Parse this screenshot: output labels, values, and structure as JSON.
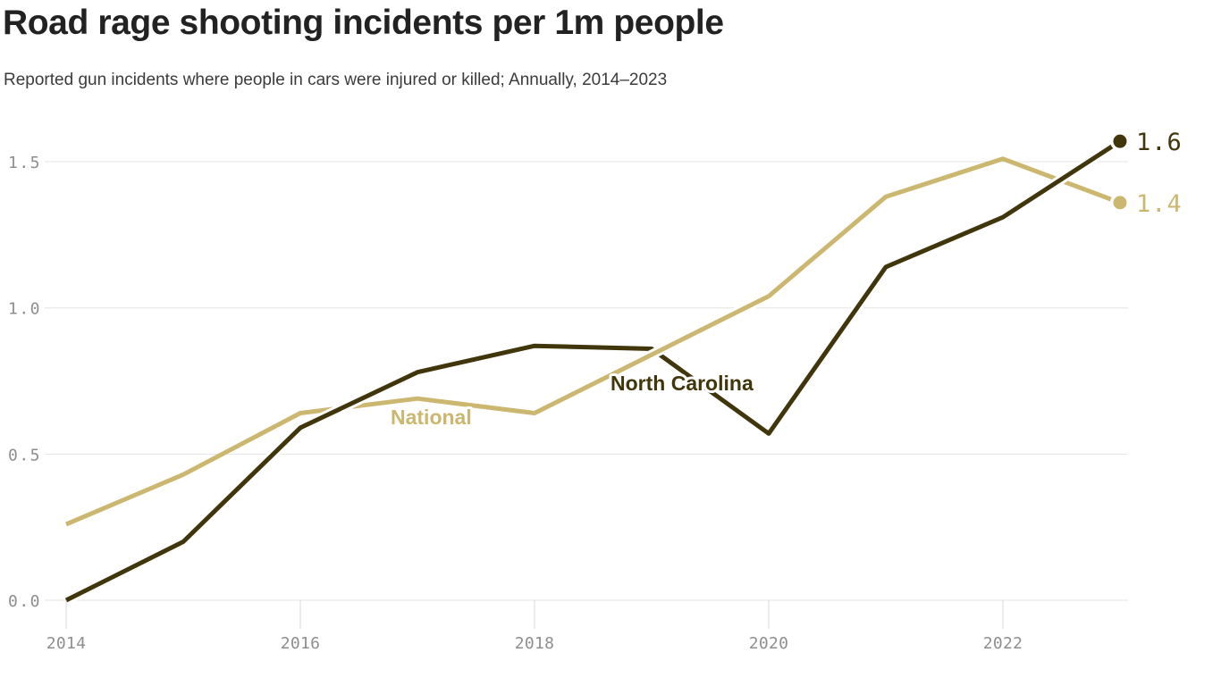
{
  "colors": {
    "north_carolina": "#40350b",
    "national": "#cbb76f",
    "grid": "#e4e4e2",
    "tick": "#d8d8d6",
    "axis_text": "#8e8e8e",
    "title_text": "#222222",
    "subtitle_text": "#3b3b3b",
    "background": "#ffffff",
    "label_halo": "#ffffff"
  },
  "chart_data": {
    "type": "line",
    "title": "Road rage shooting incidents per 1m people",
    "subtitle": "Reported gun incidents where people in cars were injured or killed; Annually, 2014–2023",
    "x": [
      2014,
      2015,
      2016,
      2017,
      2018,
      2019,
      2020,
      2021,
      2022,
      2023
    ],
    "x_range": [
      2014,
      2023
    ],
    "ylim": [
      0,
      1.5
    ],
    "y_ticks": [
      "0.0",
      "0.5",
      "1.0",
      "1.5"
    ],
    "x_ticks": [
      "2014",
      "2016",
      "2018",
      "2020",
      "2022"
    ],
    "grid": "horizontal",
    "legend": "inline-line-labels",
    "xlabel": "",
    "ylabel": "",
    "series": [
      {
        "name": "North Carolina",
        "color_key": "north_carolina",
        "values": [
          0.0,
          0.2,
          0.59,
          0.78,
          0.87,
          0.86,
          0.57,
          1.14,
          1.31,
          1.57
        ],
        "end_label": "1.6"
      },
      {
        "name": "National",
        "color_key": "national",
        "values": [
          0.26,
          0.43,
          0.64,
          0.69,
          0.64,
          0.84,
          1.04,
          1.38,
          1.51,
          1.36
        ],
        "end_label": "1.4"
      }
    ]
  }
}
